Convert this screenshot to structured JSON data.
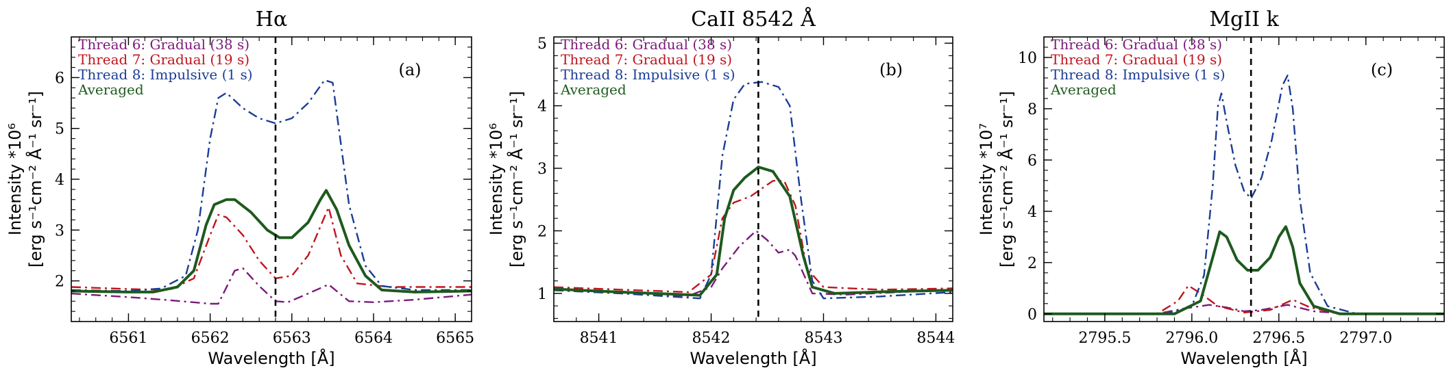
{
  "chart_data": [
    {
      "type": "line",
      "title": "Hα",
      "panel_label": "(a)",
      "xlabel": "Wavelength [Å]",
      "ylabel_line1": "Intensity *10⁶",
      "ylabel_line2": "[erg s⁻¹cm⁻² Å⁻¹ sr⁻¹]",
      "xlim": [
        6560.3,
        6565.2
      ],
      "ylim": [
        1.2,
        6.8
      ],
      "xticks": [
        6561,
        6562,
        6563,
        6564,
        6565
      ],
      "yticks": [
        2,
        3,
        4,
        5,
        6
      ],
      "vline": 6562.8,
      "legend_position": "top-left",
      "series": [
        {
          "name": "Thread 6: Gradual (38 s)",
          "color": "#7a1a7a",
          "style": "dashdot",
          "points": [
            [
              6560.3,
              1.75
            ],
            [
              6561.0,
              1.68
            ],
            [
              6561.5,
              1.62
            ],
            [
              6562.0,
              1.55
            ],
            [
              6562.1,
              1.55
            ],
            [
              6562.3,
              2.2
            ],
            [
              6562.4,
              2.25
            ],
            [
              6562.6,
              1.9
            ],
            [
              6562.8,
              1.6
            ],
            [
              6562.95,
              1.58
            ],
            [
              6563.2,
              1.75
            ],
            [
              6563.45,
              1.93
            ],
            [
              6563.7,
              1.6
            ],
            [
              6564.0,
              1.58
            ],
            [
              6564.5,
              1.63
            ],
            [
              6565.2,
              1.73
            ]
          ]
        },
        {
          "name": "Thread 7: Gradual (19 s)",
          "color": "#c0141e",
          "style": "dashdot",
          "points": [
            [
              6560.3,
              1.88
            ],
            [
              6561.0,
              1.84
            ],
            [
              6561.5,
              1.82
            ],
            [
              6561.8,
              2.05
            ],
            [
              6562.0,
              2.9
            ],
            [
              6562.1,
              3.3
            ],
            [
              6562.2,
              3.25
            ],
            [
              6562.4,
              2.9
            ],
            [
              6562.6,
              2.4
            ],
            [
              6562.8,
              2.05
            ],
            [
              6563.0,
              2.1
            ],
            [
              6563.2,
              2.5
            ],
            [
              6563.45,
              3.45
            ],
            [
              6563.6,
              2.5
            ],
            [
              6563.8,
              1.95
            ],
            [
              6564.2,
              1.88
            ],
            [
              6565.2,
              1.88
            ]
          ]
        },
        {
          "name": "Thread 8: Impulsive (1 s)",
          "color": "#1a3c96",
          "style": "dashdot",
          "points": [
            [
              6560.3,
              1.82
            ],
            [
              6561.0,
              1.8
            ],
            [
              6561.4,
              1.85
            ],
            [
              6561.7,
              2.1
            ],
            [
              6561.85,
              3.0
            ],
            [
              6562.0,
              4.8
            ],
            [
              6562.1,
              5.6
            ],
            [
              6562.2,
              5.7
            ],
            [
              6562.4,
              5.4
            ],
            [
              6562.6,
              5.2
            ],
            [
              6562.8,
              5.1
            ],
            [
              6563.0,
              5.2
            ],
            [
              6563.2,
              5.5
            ],
            [
              6563.4,
              5.95
            ],
            [
              6563.5,
              5.9
            ],
            [
              6563.7,
              3.5
            ],
            [
              6563.9,
              2.3
            ],
            [
              6564.1,
              1.9
            ],
            [
              6564.5,
              1.82
            ],
            [
              6565.2,
              1.82
            ]
          ]
        },
        {
          "name": "Averaged",
          "color": "#1e5a1e",
          "style": "solid",
          "points": [
            [
              6560.3,
              1.8
            ],
            [
              6561.0,
              1.78
            ],
            [
              6561.3,
              1.78
            ],
            [
              6561.6,
              1.88
            ],
            [
              6561.8,
              2.2
            ],
            [
              6561.95,
              3.1
            ],
            [
              6562.05,
              3.5
            ],
            [
              6562.2,
              3.6
            ],
            [
              6562.3,
              3.6
            ],
            [
              6562.5,
              3.35
            ],
            [
              6562.7,
              3.0
            ],
            [
              6562.85,
              2.85
            ],
            [
              6563.0,
              2.85
            ],
            [
              6563.2,
              3.15
            ],
            [
              6563.35,
              3.6
            ],
            [
              6563.42,
              3.78
            ],
            [
              6563.55,
              3.4
            ],
            [
              6563.7,
              2.7
            ],
            [
              6563.9,
              2.1
            ],
            [
              6564.1,
              1.82
            ],
            [
              6564.5,
              1.78
            ],
            [
              6565.2,
              1.8
            ]
          ]
        }
      ]
    },
    {
      "type": "line",
      "title": "CaII 8542 Å",
      "panel_label": "(b)",
      "xlabel": "Wavelength [Å]",
      "ylabel_line1": "Intensity *10⁶",
      "ylabel_line2": "[erg s⁻¹cm⁻² Å⁻¹ sr⁻¹]",
      "xlim": [
        8540.6,
        8544.15
      ],
      "ylim": [
        0.55,
        5.1
      ],
      "xticks": [
        8541,
        8542,
        8543,
        8544
      ],
      "yticks": [
        1,
        2,
        3,
        4,
        5
      ],
      "vline": 8542.42,
      "legend_position": "top-left",
      "series": [
        {
          "name": "Thread 6: Gradual (38 s)",
          "color": "#7a1a7a",
          "style": "dashdot",
          "points": [
            [
              8540.6,
              1.05
            ],
            [
              8541.2,
              1.0
            ],
            [
              8541.8,
              0.96
            ],
            [
              8542.0,
              1.1
            ],
            [
              8542.1,
              1.4
            ],
            [
              8542.25,
              1.75
            ],
            [
              8542.4,
              2.0
            ],
            [
              8542.5,
              1.85
            ],
            [
              8542.6,
              1.65
            ],
            [
              8542.7,
              1.7
            ],
            [
              8542.75,
              1.6
            ],
            [
              8542.9,
              1.0
            ],
            [
              8543.2,
              0.98
            ],
            [
              8543.8,
              1.03
            ],
            [
              8544.15,
              1.05
            ]
          ]
        },
        {
          "name": "Thread 7: Gradual (19 s)",
          "color": "#c0141e",
          "style": "dashdot",
          "points": [
            [
              8540.6,
              1.1
            ],
            [
              8541.2,
              1.06
            ],
            [
              8541.8,
              1.02
            ],
            [
              8542.0,
              1.3
            ],
            [
              8542.1,
              2.2
            ],
            [
              8542.2,
              2.45
            ],
            [
              8542.35,
              2.55
            ],
            [
              8542.55,
              2.8
            ],
            [
              8542.65,
              2.8
            ],
            [
              8542.75,
              2.4
            ],
            [
              8542.85,
              1.4
            ],
            [
              8543.0,
              1.1
            ],
            [
              8543.5,
              1.06
            ],
            [
              8544.15,
              1.08
            ]
          ]
        },
        {
          "name": "Thread 8: Impulsive (1 s)",
          "color": "#1a3c96",
          "style": "dashdot",
          "points": [
            [
              8540.6,
              1.05
            ],
            [
              8541.2,
              1.0
            ],
            [
              8541.9,
              0.92
            ],
            [
              8542.0,
              1.3
            ],
            [
              8542.1,
              3.2
            ],
            [
              8542.2,
              4.1
            ],
            [
              8542.3,
              4.35
            ],
            [
              8542.45,
              4.38
            ],
            [
              8542.6,
              4.3
            ],
            [
              8542.7,
              4.0
            ],
            [
              8542.8,
              2.5
            ],
            [
              8542.9,
              1.2
            ],
            [
              8543.0,
              0.92
            ],
            [
              8543.5,
              0.95
            ],
            [
              8544.15,
              1.02
            ]
          ]
        },
        {
          "name": "Averaged",
          "color": "#1e5a1e",
          "style": "solid",
          "points": [
            [
              8540.6,
              1.07
            ],
            [
              8541.2,
              1.02
            ],
            [
              8541.9,
              0.97
            ],
            [
              8542.05,
              1.3
            ],
            [
              8542.12,
              2.2
            ],
            [
              8542.2,
              2.65
            ],
            [
              8542.3,
              2.85
            ],
            [
              8542.42,
              3.02
            ],
            [
              8542.55,
              2.95
            ],
            [
              8542.7,
              2.55
            ],
            [
              8542.82,
              1.6
            ],
            [
              8542.9,
              1.1
            ],
            [
              8543.1,
              1.0
            ],
            [
              8543.6,
              1.03
            ],
            [
              8544.15,
              1.05
            ]
          ]
        }
      ]
    },
    {
      "type": "line",
      "title": "MgII  k",
      "panel_label": "(c)",
      "xlabel": "Wavelength [Å]",
      "ylabel_line1": "Intensity *10⁷",
      "ylabel_line2": "[erg s⁻¹cm⁻² Å⁻¹ sr⁻¹]",
      "xlim": [
        2795.15,
        2797.45
      ],
      "ylim": [
        -0.3,
        10.8
      ],
      "xticks": [
        2795.5,
        2796.0,
        2796.5,
        2797.0
      ],
      "xtick_labels": [
        "2795.5",
        "2796.0",
        "2796.5",
        "2797.0"
      ],
      "yticks": [
        0,
        2,
        4,
        6,
        8,
        10
      ],
      "vline": 2796.34,
      "legend_position": "top-left",
      "series": [
        {
          "name": "Thread 6: Gradual (38 s)",
          "color": "#7a1a7a",
          "style": "dashdot",
          "points": [
            [
              2795.15,
              0.0
            ],
            [
              2795.8,
              0.0
            ],
            [
              2795.95,
              0.2
            ],
            [
              2796.1,
              0.35
            ],
            [
              2796.2,
              0.25
            ],
            [
              2796.3,
              0.1
            ],
            [
              2796.4,
              0.15
            ],
            [
              2796.55,
              0.35
            ],
            [
              2796.7,
              0.1
            ],
            [
              2796.9,
              0.0
            ],
            [
              2797.45,
              0.0
            ]
          ]
        },
        {
          "name": "Thread 7: Gradual (19 s)",
          "color": "#c0141e",
          "style": "dashdot",
          "points": [
            [
              2795.15,
              0.0
            ],
            [
              2795.8,
              0.0
            ],
            [
              2795.92,
              0.5
            ],
            [
              2795.98,
              1.1
            ],
            [
              2796.05,
              0.8
            ],
            [
              2796.15,
              0.3
            ],
            [
              2796.3,
              0.05
            ],
            [
              2796.45,
              0.15
            ],
            [
              2796.58,
              0.55
            ],
            [
              2796.68,
              0.25
            ],
            [
              2796.85,
              0.0
            ],
            [
              2797.45,
              0.0
            ]
          ]
        },
        {
          "name": "Thread 8: Impulsive (1 s)",
          "color": "#1a3c96",
          "style": "dashdot",
          "points": [
            [
              2795.15,
              0.0
            ],
            [
              2795.85,
              0.0
            ],
            [
              2796.0,
              0.3
            ],
            [
              2796.07,
              1.5
            ],
            [
              2796.12,
              5.0
            ],
            [
              2796.15,
              8.1
            ],
            [
              2796.17,
              8.6
            ],
            [
              2796.2,
              7.5
            ],
            [
              2796.25,
              5.8
            ],
            [
              2796.3,
              4.8
            ],
            [
              2796.34,
              4.5
            ],
            [
              2796.4,
              5.3
            ],
            [
              2796.46,
              6.8
            ],
            [
              2796.52,
              8.9
            ],
            [
              2796.55,
              9.3
            ],
            [
              2796.58,
              8.0
            ],
            [
              2796.62,
              4.5
            ],
            [
              2796.68,
              1.6
            ],
            [
              2796.78,
              0.3
            ],
            [
              2796.95,
              0.0
            ],
            [
              2797.45,
              0.0
            ]
          ]
        },
        {
          "name": "Averaged",
          "color": "#1e5a1e",
          "style": "solid",
          "points": [
            [
              2795.15,
              0.0
            ],
            [
              2795.9,
              0.0
            ],
            [
              2796.05,
              0.5
            ],
            [
              2796.12,
              2.2
            ],
            [
              2796.16,
              3.2
            ],
            [
              2796.2,
              3.0
            ],
            [
              2796.26,
              2.1
            ],
            [
              2796.32,
              1.7
            ],
            [
              2796.38,
              1.7
            ],
            [
              2796.45,
              2.2
            ],
            [
              2796.5,
              3.0
            ],
            [
              2796.54,
              3.4
            ],
            [
              2796.58,
              2.6
            ],
            [
              2796.62,
              1.2
            ],
            [
              2796.7,
              0.3
            ],
            [
              2796.85,
              0.0
            ],
            [
              2797.45,
              0.0
            ]
          ]
        }
      ]
    }
  ]
}
